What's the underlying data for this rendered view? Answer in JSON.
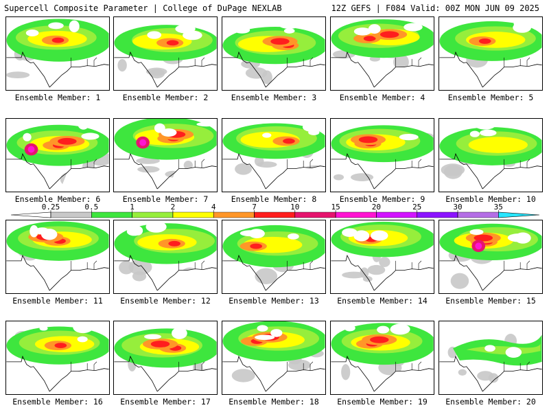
{
  "header": {
    "left_title": "Supercell Composite Parameter | College of DuPage NEXLAB",
    "right_title": "12Z GEFS | F084 Valid: 00Z MON JUN 09 2025"
  },
  "member_label_prefix": "Ensemble Member:",
  "members": [
    {
      "number": "1",
      "intensity": 2
    },
    {
      "number": "2",
      "intensity": 2
    },
    {
      "number": "3",
      "intensity": 3
    },
    {
      "number": "4",
      "intensity": 3
    },
    {
      "number": "5",
      "intensity": 2
    },
    {
      "number": "6",
      "intensity": 4
    },
    {
      "number": "7",
      "intensity": 4
    },
    {
      "number": "8",
      "intensity": 2
    },
    {
      "number": "9",
      "intensity": 3
    },
    {
      "number": "10",
      "intensity": 1
    },
    {
      "number": "11",
      "intensity": 3
    },
    {
      "number": "12",
      "intensity": 2
    },
    {
      "number": "13",
      "intensity": 2
    },
    {
      "number": "14",
      "intensity": 2
    },
    {
      "number": "15",
      "intensity": 4
    },
    {
      "number": "16",
      "intensity": 2
    },
    {
      "number": "17",
      "intensity": 3
    },
    {
      "number": "18",
      "intensity": 3
    },
    {
      "number": "19",
      "intensity": 3
    },
    {
      "number": "20",
      "intensity": 0
    }
  ],
  "legend": {
    "ticks": [
      "0.25",
      "0.5",
      "1",
      "2",
      "4",
      "7",
      "10",
      "15",
      "20",
      "25",
      "30",
      "35"
    ],
    "colors": [
      "#c8c8c8",
      "#3ee63e",
      "#96ee3c",
      "#ffff00",
      "#ff9628",
      "#ff1e1e",
      "#e6146e",
      "#ff14d2",
      "#d214ff",
      "#8c14ff",
      "#b46ee6",
      "#28e6ff"
    ]
  }
}
